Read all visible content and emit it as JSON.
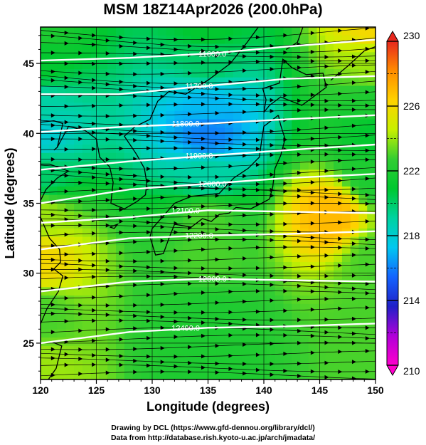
{
  "title": "MSM 18Z14Apr2026 (200.0hPa)",
  "credits": [
    "Drawing by DCL (https://www.gfd-dennou.org/library/dcl/)",
    "Data from http://database.rish.kyoto-u.ac.jp/arch/jmadata/"
  ],
  "chart_data": {
    "type": "heatmap",
    "title": "MSM 18Z14Apr2026 (200.0hPa)",
    "xlabel": "Longitude (degrees)",
    "ylabel": "Latitude  (degrees)",
    "xlim": [
      120,
      150
    ],
    "ylim": [
      22.4,
      47.6
    ],
    "xticks": [
      120,
      125,
      130,
      135,
      140,
      145,
      150
    ],
    "yticks": [
      25,
      30,
      35,
      40,
      45
    ],
    "colorbar": {
      "min": 210,
      "max": 230,
      "ticks": [
        210,
        214,
        218,
        222,
        226,
        230
      ],
      "colors": [
        "#ff00cc",
        "#b000d8",
        "#2020c8",
        "#1464ff",
        "#00c8f0",
        "#00d2a0",
        "#00c830",
        "#32cd32",
        "#c8f000",
        "#ffd200",
        "#ff8c00",
        "#e8281e"
      ]
    },
    "temperature_field": [
      {
        "lat": 47.5,
        "lon": 120,
        "temp": 222
      },
      {
        "lat": 47.5,
        "lon": 135,
        "temp": 221
      },
      {
        "lat": 47.5,
        "lon": 150,
        "temp": 226
      },
      {
        "lat": 45,
        "lon": 120,
        "temp": 221
      },
      {
        "lat": 45,
        "lon": 135,
        "temp": 220
      },
      {
        "lat": 45,
        "lon": 150,
        "temp": 224
      },
      {
        "lat": 42,
        "lon": 120,
        "temp": 219
      },
      {
        "lat": 42,
        "lon": 135,
        "temp": 217
      },
      {
        "lat": 42,
        "lon": 150,
        "temp": 222
      },
      {
        "lat": 40,
        "lon": 120,
        "temp": 218
      },
      {
        "lat": 40,
        "lon": 135,
        "temp": 216
      },
      {
        "lat": 40,
        "lon": 150,
        "temp": 221
      },
      {
        "lat": 37,
        "lon": 120,
        "temp": 220
      },
      {
        "lat": 37,
        "lon": 135,
        "temp": 219
      },
      {
        "lat": 37,
        "lon": 150,
        "temp": 222
      },
      {
        "lat": 34,
        "lon": 120,
        "temp": 224
      },
      {
        "lat": 34,
        "lon": 135,
        "temp": 223
      },
      {
        "lat": 34,
        "lon": 146,
        "temp": 227
      },
      {
        "lat": 31,
        "lon": 120,
        "temp": 226
      },
      {
        "lat": 31,
        "lon": 135,
        "temp": 223
      },
      {
        "lat": 31,
        "lon": 150,
        "temp": 223
      },
      {
        "lat": 27,
        "lon": 120,
        "temp": 223
      },
      {
        "lat": 27,
        "lon": 135,
        "temp": 222
      },
      {
        "lat": 27,
        "lon": 150,
        "temp": 223
      },
      {
        "lat": 23,
        "lon": 120,
        "temp": 224
      },
      {
        "lat": 23,
        "lon": 135,
        "temp": 222
      },
      {
        "lat": 23,
        "lon": 150,
        "temp": 223
      }
    ],
    "height_contours": [
      {
        "label": "11800.0",
        "points": [
          [
            120,
            40.1
          ],
          [
            128,
            40.5
          ],
          [
            135,
            40.7
          ],
          [
            142,
            41.0
          ],
          [
            150,
            41.3
          ]
        ]
      },
      {
        "label": "11900.0",
        "points": [
          [
            120,
            37.4
          ],
          [
            128,
            38.0
          ],
          [
            135,
            38.4
          ],
          [
            142,
            38.8
          ],
          [
            150,
            39.2
          ]
        ]
      },
      {
        "label": "12000.0",
        "points": [
          [
            120,
            35.0
          ],
          [
            128,
            36.0
          ],
          [
            135,
            36.4
          ],
          [
            142,
            36.8
          ],
          [
            150,
            37.1
          ]
        ]
      },
      {
        "label": "12100.0",
        "points": [
          [
            120,
            33.6
          ],
          [
            128,
            34.0
          ],
          [
            135,
            34.5
          ],
          [
            142,
            34.4
          ],
          [
            150,
            34.3
          ]
        ]
      },
      {
        "label": "12200.0",
        "points": [
          [
            120,
            31.7
          ],
          [
            128,
            32.5
          ],
          [
            135,
            32.7
          ],
          [
            142,
            32.8
          ],
          [
            150,
            33.0
          ]
        ]
      },
      {
        "label": "12300.0",
        "points": [
          [
            120,
            28.7
          ],
          [
            128,
            29.4
          ],
          [
            135,
            29.6
          ],
          [
            142,
            29.5
          ],
          [
            150,
            29.4
          ]
        ]
      },
      {
        "label": "12400.0",
        "points": [
          [
            120,
            25.0
          ],
          [
            128,
            25.8
          ],
          [
            135,
            26.1
          ],
          [
            142,
            26.2
          ],
          [
            150,
            26.4
          ]
        ]
      },
      {
        "label": "11700.0",
        "points": [
          [
            120,
            42.8
          ],
          [
            127,
            42.8
          ],
          [
            135,
            43.4
          ],
          [
            142,
            43.9
          ],
          [
            150,
            44.1
          ]
        ]
      },
      {
        "label": "11600.0",
        "points": [
          [
            120,
            45.2
          ],
          [
            128,
            45.4
          ],
          [
            135,
            45.7
          ],
          [
            142,
            46.2
          ],
          [
            150,
            46.7
          ]
        ]
      }
    ],
    "wind_field": {
      "description": "westerly streamlines",
      "direction_deg_from_east": 0
    }
  }
}
